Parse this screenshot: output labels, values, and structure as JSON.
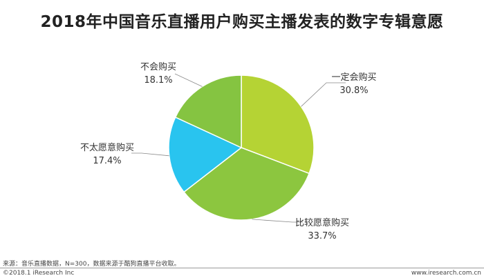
{
  "chart_data": {
    "type": "pie",
    "title": "2018年中国音乐直播用户购买主播发表的数字专辑意愿",
    "slices": [
      {
        "label": "一定会购买",
        "value": 30.8,
        "value_label": "30.8%",
        "color": "#b5d334"
      },
      {
        "label": "比较愿意购买",
        "value": 33.7,
        "value_label": "33.7%",
        "color": "#8cc63f"
      },
      {
        "label": "不太愿意购买",
        "value": 17.4,
        "value_label": "17.4%",
        "color": "#29c4ef"
      },
      {
        "label": "不会购买",
        "value": 18.1,
        "value_label": "18.1%",
        "color": "#85c441"
      }
    ],
    "start": "12 o'clock",
    "direction": "clockwise"
  },
  "footer": {
    "source": "来源：音乐直播数据，N=300，数据来源于酷狗直播平台收取。",
    "copyright": "©2018.1 iResearch Inc",
    "website": "www.iresearch.com.cn"
  }
}
